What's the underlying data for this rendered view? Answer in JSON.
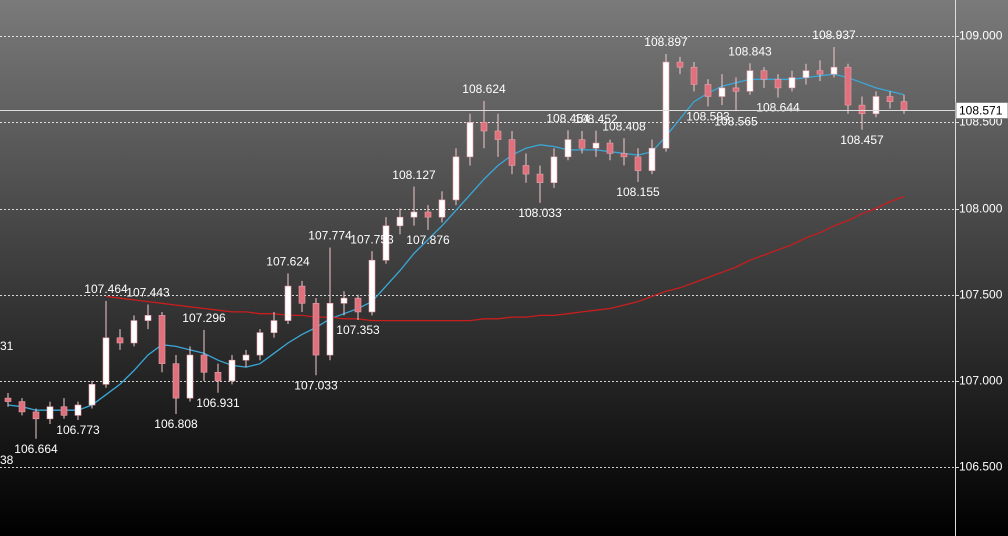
{
  "chart_data": {
    "type": "candlestick",
    "ylim": [
      106.1,
      109.21
    ],
    "yticks": [
      {
        "value": 109,
        "label": "109.000"
      },
      {
        "value": 108.5,
        "label": "108.500"
      },
      {
        "value": 108,
        "label": "108.000"
      },
      {
        "value": 107.5,
        "label": "107.500"
      },
      {
        "value": 107,
        "label": "107.000"
      },
      {
        "value": 106.5,
        "label": "106.500"
      }
    ],
    "grid": true,
    "up_color": "#ffffff",
    "down_color": "#e0707c",
    "ohlc": [
      [
        106.9,
        106.93,
        106.85,
        106.88
      ],
      [
        106.88,
        106.9,
        106.8,
        106.82
      ],
      [
        106.82,
        106.84,
        106.664,
        106.78
      ],
      [
        106.78,
        106.88,
        106.75,
        106.85
      ],
      [
        106.85,
        106.9,
        106.78,
        106.8
      ],
      [
        106.8,
        106.88,
        106.773,
        106.86
      ],
      [
        106.86,
        107.0,
        106.84,
        106.98
      ],
      [
        106.98,
        107.464,
        106.96,
        107.25
      ],
      [
        107.25,
        107.3,
        107.18,
        107.22
      ],
      [
        107.22,
        107.38,
        107.2,
        107.35
      ],
      [
        107.35,
        107.443,
        107.3,
        107.38
      ],
      [
        107.38,
        107.4,
        107.05,
        107.1
      ],
      [
        107.1,
        107.15,
        106.808,
        106.9
      ],
      [
        106.9,
        107.2,
        106.88,
        107.15
      ],
      [
        107.15,
        107.296,
        107.0,
        107.05
      ],
      [
        107.05,
        107.1,
        106.931,
        107.0
      ],
      [
        107.0,
        107.15,
        106.98,
        107.12
      ],
      [
        107.12,
        107.18,
        107.08,
        107.15
      ],
      [
        107.15,
        107.3,
        107.12,
        107.28
      ],
      [
        107.28,
        107.4,
        107.25,
        107.35
      ],
      [
        107.35,
        107.624,
        107.33,
        107.55
      ],
      [
        107.55,
        107.58,
        107.4,
        107.45
      ],
      [
        107.45,
        107.48,
        107.033,
        107.15
      ],
      [
        107.15,
        107.774,
        107.12,
        107.45
      ],
      [
        107.45,
        107.52,
        107.38,
        107.48
      ],
      [
        107.48,
        107.5,
        107.353,
        107.4
      ],
      [
        107.4,
        107.753,
        107.38,
        107.7
      ],
      [
        107.7,
        107.95,
        107.68,
        107.9
      ],
      [
        107.9,
        108.0,
        107.85,
        107.95
      ],
      [
        107.95,
        108.127,
        107.9,
        107.98
      ],
      [
        107.98,
        108.02,
        107.876,
        107.95
      ],
      [
        107.95,
        108.1,
        107.92,
        108.05
      ],
      [
        108.05,
        108.35,
        108.02,
        108.3
      ],
      [
        108.3,
        108.55,
        108.25,
        108.5
      ],
      [
        108.5,
        108.624,
        108.35,
        108.45
      ],
      [
        108.45,
        108.55,
        108.3,
        108.4
      ],
      [
        108.4,
        108.45,
        108.2,
        108.25
      ],
      [
        108.25,
        108.32,
        108.15,
        108.2
      ],
      [
        108.2,
        108.25,
        108.033,
        108.15
      ],
      [
        108.15,
        108.35,
        108.12,
        108.3
      ],
      [
        108.3,
        108.454,
        108.28,
        108.4
      ],
      [
        108.4,
        108.45,
        108.32,
        108.35
      ],
      [
        108.35,
        108.452,
        108.3,
        108.38
      ],
      [
        108.38,
        108.4,
        108.28,
        108.32
      ],
      [
        108.32,
        108.408,
        108.25,
        108.3
      ],
      [
        108.3,
        108.35,
        108.155,
        108.22
      ],
      [
        108.22,
        108.4,
        108.2,
        108.35
      ],
      [
        108.35,
        108.897,
        108.33,
        108.85
      ],
      [
        108.85,
        108.88,
        108.78,
        108.82
      ],
      [
        108.82,
        108.85,
        108.68,
        108.72
      ],
      [
        108.72,
        108.75,
        108.593,
        108.65
      ],
      [
        108.65,
        108.78,
        108.6,
        108.7
      ],
      [
        108.7,
        108.76,
        108.565,
        108.68
      ],
      [
        108.68,
        108.843,
        108.66,
        108.8
      ],
      [
        108.8,
        108.82,
        108.7,
        108.75
      ],
      [
        108.75,
        108.78,
        108.644,
        108.7
      ],
      [
        108.7,
        108.8,
        108.68,
        108.76
      ],
      [
        108.76,
        108.84,
        108.72,
        108.8
      ],
      [
        108.8,
        108.86,
        108.74,
        108.78
      ],
      [
        108.78,
        108.937,
        108.76,
        108.82
      ],
      [
        108.82,
        108.84,
        108.55,
        108.6
      ],
      [
        108.6,
        108.65,
        108.457,
        108.55
      ],
      [
        108.55,
        108.68,
        108.53,
        108.65
      ],
      [
        108.65,
        108.68,
        108.58,
        108.62
      ],
      [
        108.62,
        108.66,
        108.55,
        108.571
      ]
    ],
    "series": [
      {
        "color": "#3aa8d8",
        "values": [
          106.86,
          106.85,
          106.83,
          106.83,
          106.83,
          106.83,
          106.86,
          106.92,
          106.98,
          107.06,
          107.15,
          107.21,
          107.2,
          107.18,
          107.16,
          107.12,
          107.09,
          107.08,
          107.1,
          107.16,
          107.22,
          107.27,
          107.31,
          107.36,
          107.39,
          107.42,
          107.46,
          107.55,
          107.64,
          107.74,
          107.82,
          107.9,
          107.99,
          108.08,
          108.17,
          108.25,
          108.31,
          108.35,
          108.37,
          108.36,
          108.34,
          108.34,
          108.34,
          108.33,
          108.32,
          108.31,
          108.33,
          108.42,
          108.52,
          108.62,
          108.67,
          108.71,
          108.73,
          108.75,
          108.75,
          108.75,
          108.75,
          108.76,
          108.77,
          108.78,
          108.76,
          108.73,
          108.7,
          108.68,
          108.66
        ]
      },
      {
        "color": "#c81e1e",
        "values": [
          null,
          null,
          null,
          null,
          null,
          null,
          null,
          107.49,
          107.48,
          107.47,
          107.46,
          107.45,
          107.44,
          107.43,
          107.42,
          107.41,
          107.4,
          107.4,
          107.39,
          107.39,
          107.38,
          107.38,
          107.37,
          107.37,
          107.36,
          107.36,
          107.35,
          107.35,
          107.35,
          107.35,
          107.35,
          107.35,
          107.35,
          107.35,
          107.36,
          107.36,
          107.37,
          107.37,
          107.38,
          107.38,
          107.39,
          107.4,
          107.41,
          107.42,
          107.44,
          107.46,
          107.49,
          107.52,
          107.54,
          107.57,
          107.6,
          107.63,
          107.66,
          107.7,
          107.73,
          107.76,
          107.79,
          107.83,
          107.86,
          107.9,
          107.93,
          107.97,
          108.0,
          108.04,
          108.07
        ]
      }
    ],
    "annotations": [
      {
        "x": 2,
        "value": 106.664
      },
      {
        "x": 5,
        "value": 106.773
      },
      {
        "x": 7,
        "value": 107.464
      },
      {
        "x": 10,
        "value": 107.443
      },
      {
        "x": 12,
        "value": 106.808
      },
      {
        "x": 14,
        "value": 107.296
      },
      {
        "x": 15,
        "value": 106.931
      },
      {
        "x": 20,
        "value": 107.624
      },
      {
        "x": 22,
        "value": 107.033
      },
      {
        "x": 23,
        "value": 107.774
      },
      {
        "x": 25,
        "value": 107.353
      },
      {
        "x": 26,
        "value": 107.753
      },
      {
        "x": 29,
        "value": 108.127
      },
      {
        "x": 30,
        "value": 107.876
      },
      {
        "x": 34,
        "value": 108.624
      },
      {
        "x": 38,
        "value": 108.033
      },
      {
        "x": 40,
        "value": 108.454
      },
      {
        "x": 42,
        "value": 108.452
      },
      {
        "x": 44,
        "value": 108.408
      },
      {
        "x": 45,
        "value": 108.155
      },
      {
        "x": 47,
        "value": 108.897
      },
      {
        "x": 50,
        "value": 108.593
      },
      {
        "x": 52,
        "value": 108.565
      },
      {
        "x": 53,
        "value": 108.843
      },
      {
        "x": 55,
        "value": 108.644
      },
      {
        "x": 59,
        "value": 108.937
      },
      {
        "x": 61,
        "value": 108.457
      }
    ],
    "clipped_labels": [
      "31",
      "38"
    ],
    "last_price": 108.571
  }
}
